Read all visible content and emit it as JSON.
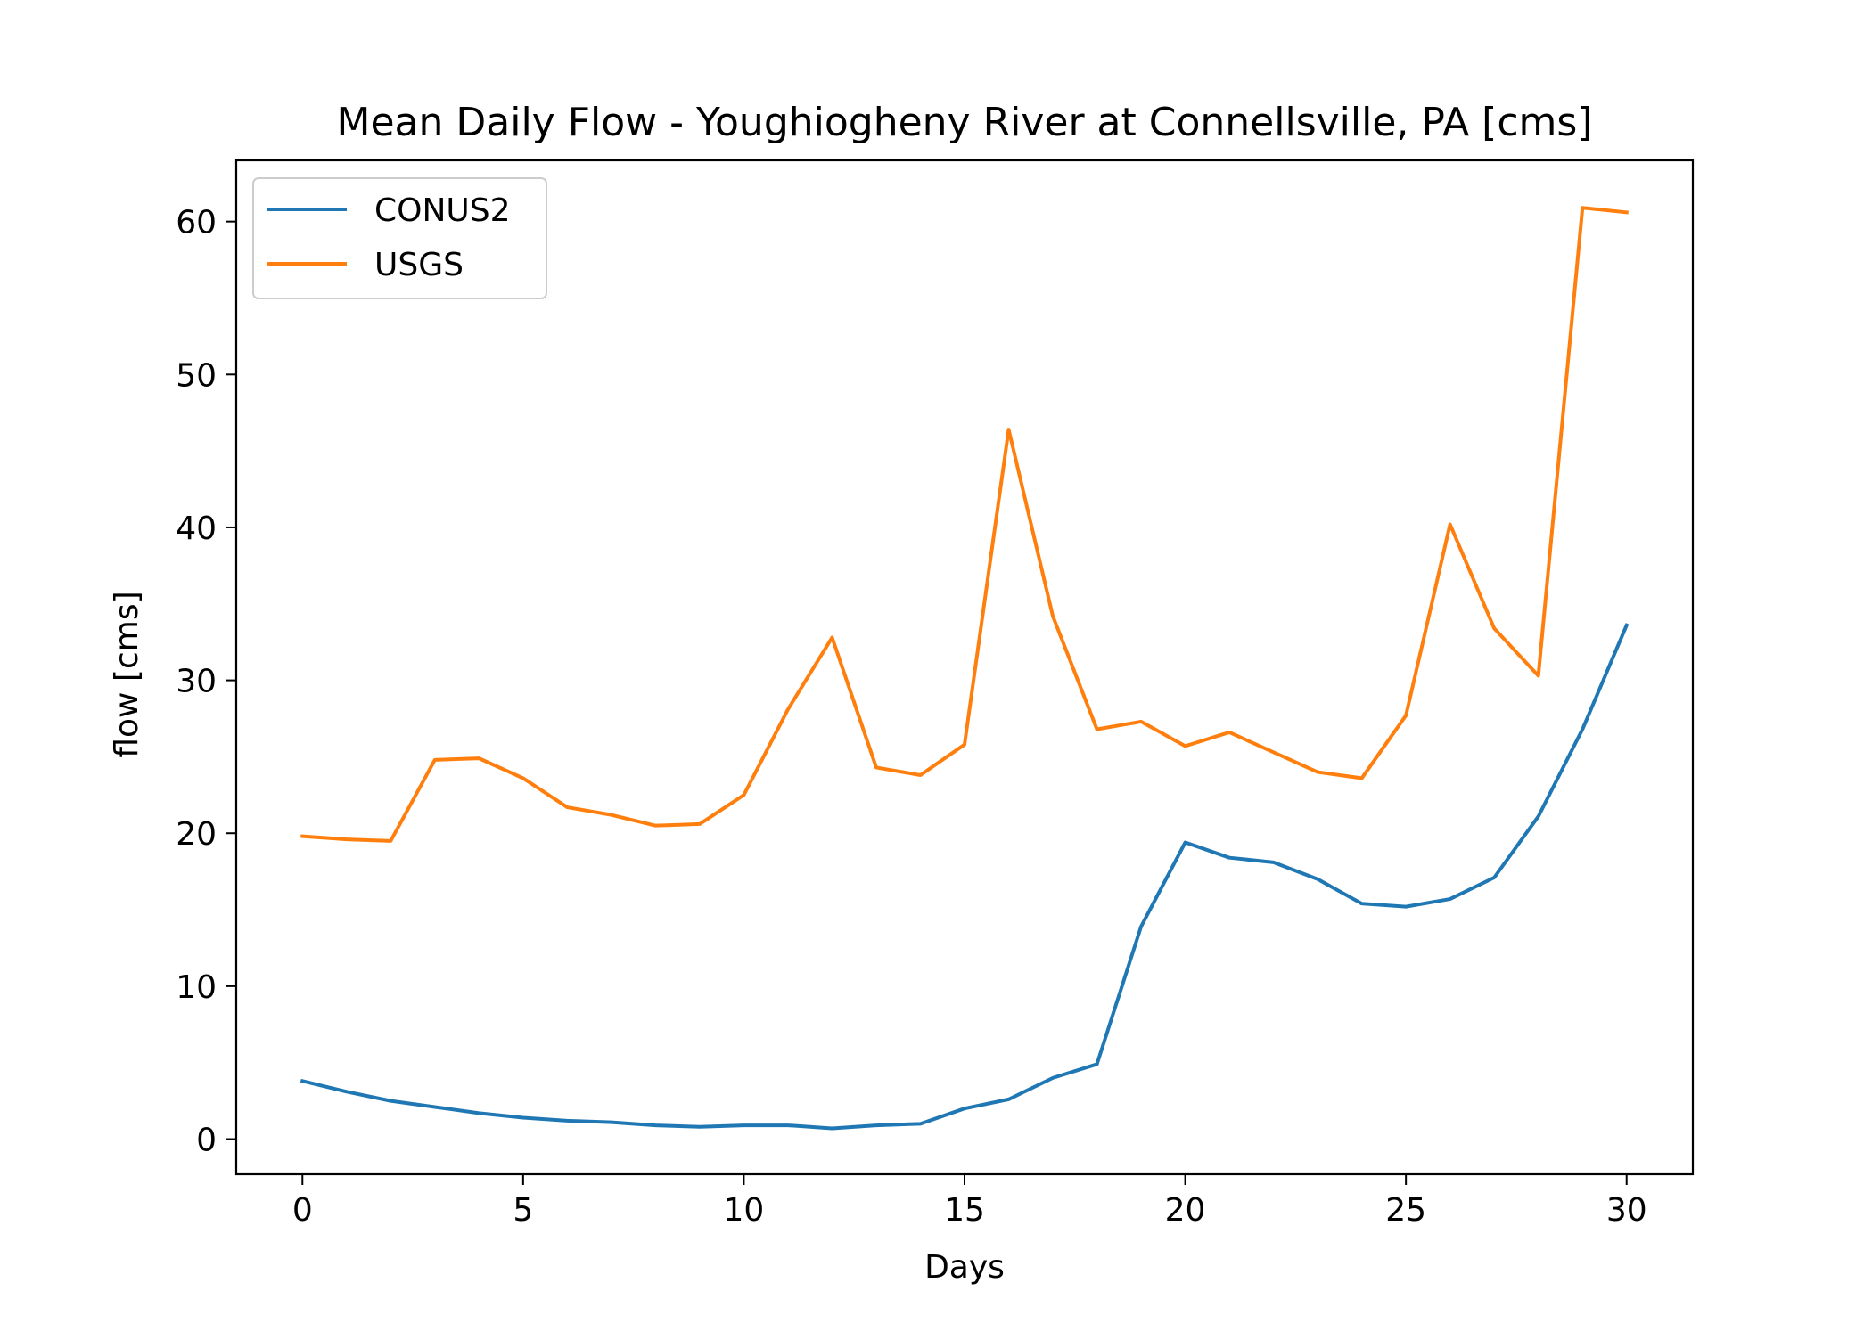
{
  "chart_data": {
    "type": "line",
    "title": "Mean Daily Flow - Youghiogheny River at Connellsville, PA [cms]",
    "xlabel": "Days",
    "ylabel": "flow [cms]",
    "xlim": [
      -1.5,
      31.5
    ],
    "ylim": [
      -2.3,
      64
    ],
    "xticks": [
      0,
      5,
      10,
      15,
      20,
      25,
      30
    ],
    "yticks": [
      0,
      10,
      20,
      30,
      40,
      50,
      60
    ],
    "xtick_labels": [
      "0",
      "5",
      "10",
      "15",
      "20",
      "25",
      "30"
    ],
    "ytick_labels": [
      "0",
      "10",
      "20",
      "30",
      "40",
      "50",
      "60"
    ],
    "grid": false,
    "legend_position": "upper-left",
    "x": [
      0,
      1,
      2,
      3,
      4,
      5,
      6,
      7,
      8,
      9,
      10,
      11,
      12,
      13,
      14,
      15,
      16,
      17,
      18,
      19,
      20,
      21,
      22,
      23,
      24,
      25,
      26,
      27,
      28,
      29,
      30
    ],
    "series": [
      {
        "name": "CONUS2",
        "color": "#1f77b4",
        "values": [
          3.8,
          3.1,
          2.5,
          2.1,
          1.7,
          1.4,
          1.2,
          1.1,
          0.9,
          0.8,
          0.9,
          0.9,
          0.7,
          0.9,
          1.0,
          2.0,
          2.6,
          4.0,
          4.9,
          13.9,
          19.4,
          18.4,
          18.1,
          17.0,
          15.4,
          15.2,
          15.7,
          17.1,
          21.1,
          26.8,
          33.6
        ]
      },
      {
        "name": "USGS",
        "color": "#ff7f0e",
        "values": [
          19.8,
          19.6,
          19.5,
          24.8,
          24.9,
          23.6,
          21.7,
          21.2,
          20.5,
          20.6,
          22.5,
          28.1,
          32.8,
          24.3,
          23.8,
          25.8,
          46.4,
          34.2,
          26.8,
          27.3,
          25.7,
          26.6,
          25.3,
          24.0,
          23.6,
          27.7,
          40.2,
          33.4,
          30.3,
          60.9,
          60.6
        ]
      }
    ]
  }
}
